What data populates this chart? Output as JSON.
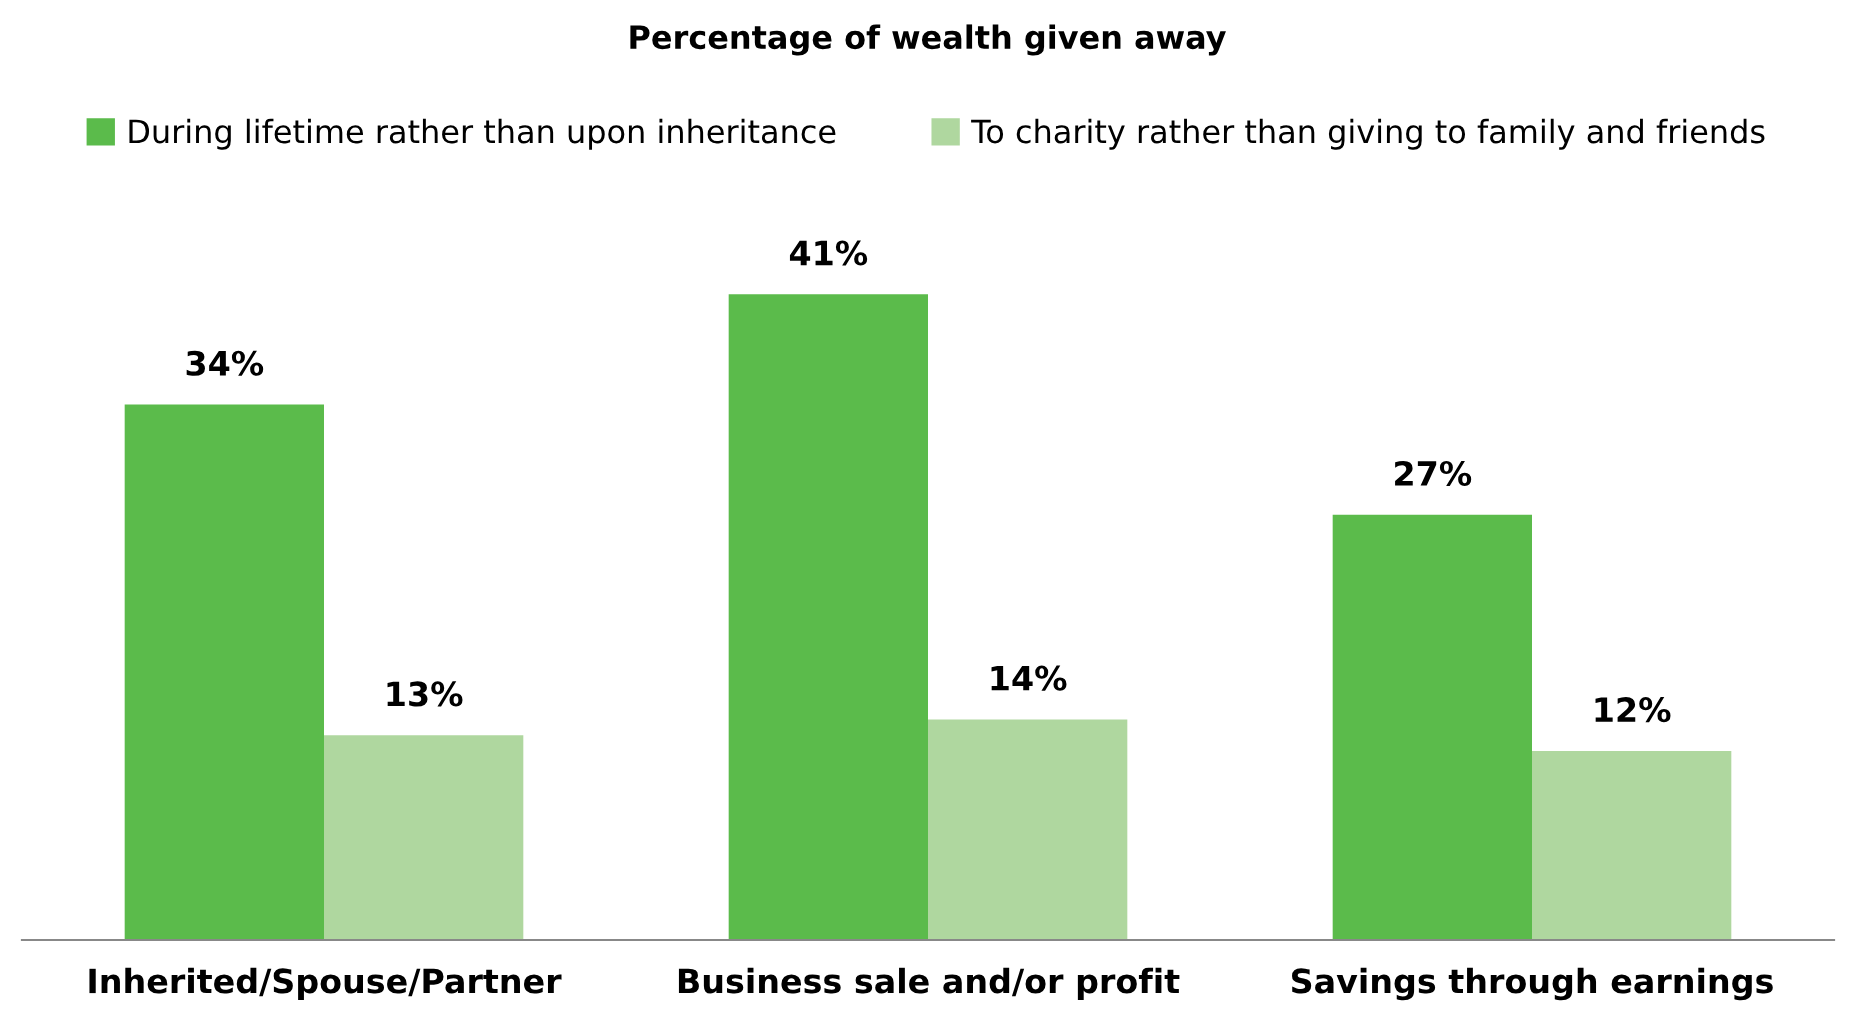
{
  "chart_data": {
    "type": "bar",
    "title": "Percentage of wealth given away",
    "categories": [
      "Inherited/Spouse/Partner",
      "Business sale and/or profit",
      "Savings through earnings"
    ],
    "series": [
      {
        "name": "During lifetime rather than upon inheritance",
        "color": "#5bbb4b",
        "values": [
          34,
          41,
          27
        ],
        "value_labels": [
          "34%",
          "41%",
          "27%"
        ]
      },
      {
        "name": "To charity rather than giving to family and friends",
        "color": "#afd79f",
        "values": [
          13,
          14,
          12
        ],
        "value_labels": [
          "13%",
          "14%",
          "12%"
        ]
      }
    ],
    "legend": "top",
    "grid": false,
    "tick_labels": "x"
  }
}
